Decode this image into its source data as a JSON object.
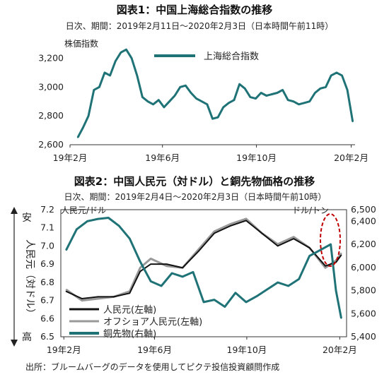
{
  "figure_source": "出所：ブルームバーグのデータを使用してピクテ投信投資顧問作成",
  "chart_data": [
    {
      "type": "line",
      "title": "図表1：中国上海総合指数の推移",
      "subtitle": "日次、期間：2019年2月11日～2020年2月3日（日本時間午前11時）",
      "ylabel": "株価指数",
      "ylim": [
        2600,
        3300
      ],
      "yticks": [
        "2,600",
        "2,800",
        "3,000",
        "3,200"
      ],
      "ytick_values": [
        2600,
        2800,
        3000,
        3200
      ],
      "xticks": [
        "19年2月",
        "19年6月",
        "19年10月",
        "20年2月"
      ],
      "legend_position": "top-right",
      "series": [
        {
          "name": "上海総合指数",
          "color": "#1f7377",
          "x": [
            "2019-02-11",
            "2019-02-18",
            "2019-02-25",
            "2019-03-04",
            "2019-03-11",
            "2019-03-18",
            "2019-03-25",
            "2019-04-01",
            "2019-04-08",
            "2019-04-15",
            "2019-04-22",
            "2019-04-29",
            "2019-05-06",
            "2019-05-13",
            "2019-05-20",
            "2019-05-27",
            "2019-06-03",
            "2019-06-10",
            "2019-06-17",
            "2019-06-24",
            "2019-07-01",
            "2019-07-08",
            "2019-07-15",
            "2019-07-22",
            "2019-07-29",
            "2019-08-05",
            "2019-08-12",
            "2019-08-19",
            "2019-08-26",
            "2019-09-02",
            "2019-09-09",
            "2019-09-16",
            "2019-09-23",
            "2019-09-30",
            "2019-10-07",
            "2019-10-14",
            "2019-10-21",
            "2019-10-28",
            "2019-11-04",
            "2019-11-11",
            "2019-11-18",
            "2019-11-25",
            "2019-12-02",
            "2019-12-09",
            "2019-12-16",
            "2019-12-23",
            "2019-12-30",
            "2020-01-06",
            "2020-01-13",
            "2020-01-20",
            "2020-01-27",
            "2020-02-03"
          ],
          "values": [
            2650,
            2720,
            2800,
            2980,
            3000,
            3100,
            3080,
            3180,
            3240,
            3260,
            3200,
            3080,
            2930,
            2900,
            2880,
            2910,
            2860,
            2900,
            2940,
            3000,
            3010,
            2960,
            2920,
            2900,
            2880,
            2780,
            2790,
            2860,
            2890,
            2910,
            3020,
            2990,
            2930,
            2920,
            2960,
            2940,
            2950,
            2960,
            2980,
            2910,
            2900,
            2880,
            2890,
            2900,
            2960,
            2990,
            3000,
            3080,
            3100,
            3080,
            2980,
            2760
          ]
        }
      ]
    },
    {
      "type": "line",
      "title": "図表2：中国人民元（対ドル）と銅先物価格の推移",
      "subtitle": "日次、期間：2019年2月4日～2020年2月3日（日本時間午前10時）",
      "left_unit": "人民元/ドル",
      "right_unit": "ドル/トン",
      "left_axis_label": "人民元（対ドル）",
      "left_axis_top": "安",
      "left_axis_bottom": "高",
      "left_ylim": [
        7.2,
        6.5
      ],
      "left_axis_inverted": true,
      "left_yticks": [
        "7.2",
        "7.1",
        "7.0",
        "6.9",
        "6.8",
        "6.7",
        "6.6",
        "6.5"
      ],
      "left_ytick_values": [
        7.2,
        7.1,
        7.0,
        6.9,
        6.8,
        6.7,
        6.6,
        6.5
      ],
      "right_ylim": [
        5400,
        6500
      ],
      "right_yticks": [
        "6,500",
        "6,400",
        "6,200",
        "6,000",
        "5,800",
        "5,600",
        "5,400"
      ],
      "right_ytick_values": [
        6500,
        6400,
        6200,
        6000,
        5800,
        5600,
        5400
      ],
      "xticks": [
        "19年2月",
        "19年6月",
        "19年10月",
        "20年2月"
      ],
      "legend_position": "bottom-left",
      "series": [
        {
          "name": "人民元(左軸)",
          "axis": "left",
          "color": "#111111",
          "x": [
            "2019-02-04",
            "2019-02-25",
            "2019-03-18",
            "2019-04-08",
            "2019-04-29",
            "2019-05-13",
            "2019-05-27",
            "2019-06-17",
            "2019-07-08",
            "2019-07-29",
            "2019-08-19",
            "2019-09-09",
            "2019-09-30",
            "2019-10-21",
            "2019-11-11",
            "2019-12-02",
            "2019-12-23",
            "2020-01-13",
            "2020-01-27",
            "2020-02-03"
          ],
          "values": [
            6.75,
            6.71,
            6.72,
            6.72,
            6.74,
            6.86,
            6.9,
            6.9,
            6.88,
            6.97,
            7.07,
            7.11,
            7.14,
            7.07,
            7.0,
            7.04,
            6.99,
            6.89,
            6.91,
            6.95
          ]
        },
        {
          "name": "オフショア人民元(左軸)",
          "axis": "left",
          "color": "#999999",
          "x": [
            "2019-02-04",
            "2019-02-25",
            "2019-03-18",
            "2019-04-08",
            "2019-04-29",
            "2019-05-13",
            "2019-05-27",
            "2019-06-17",
            "2019-07-08",
            "2019-07-29",
            "2019-08-19",
            "2019-09-09",
            "2019-09-30",
            "2019-10-21",
            "2019-11-11",
            "2019-12-02",
            "2019-12-23",
            "2020-01-13",
            "2020-01-27",
            "2020-02-03"
          ],
          "values": [
            6.76,
            6.7,
            6.71,
            6.72,
            6.75,
            6.88,
            6.93,
            6.89,
            6.88,
            6.98,
            7.08,
            7.12,
            7.15,
            7.07,
            7.01,
            7.05,
            6.99,
            6.88,
            6.92,
            6.96
          ]
        },
        {
          "name": "銅先物(右軸)",
          "axis": "right",
          "color": "#1f7377",
          "x": [
            "2019-02-04",
            "2019-02-18",
            "2019-03-04",
            "2019-03-18",
            "2019-04-01",
            "2019-04-15",
            "2019-04-29",
            "2019-05-13",
            "2019-05-27",
            "2019-06-10",
            "2019-06-24",
            "2019-07-08",
            "2019-07-22",
            "2019-08-05",
            "2019-08-19",
            "2019-09-02",
            "2019-09-16",
            "2019-09-30",
            "2019-10-14",
            "2019-10-28",
            "2019-11-11",
            "2019-11-25",
            "2019-12-09",
            "2019-12-23",
            "2020-01-06",
            "2020-01-20",
            "2020-01-27",
            "2020-02-03"
          ],
          "values": [
            6150,
            6330,
            6400,
            6420,
            6430,
            6360,
            6250,
            6050,
            5880,
            5840,
            5950,
            5920,
            5960,
            5700,
            5720,
            5660,
            5780,
            5700,
            5750,
            5810,
            5870,
            5840,
            5900,
            6100,
            6150,
            6200,
            5800,
            5560
          ]
        }
      ]
    }
  ]
}
